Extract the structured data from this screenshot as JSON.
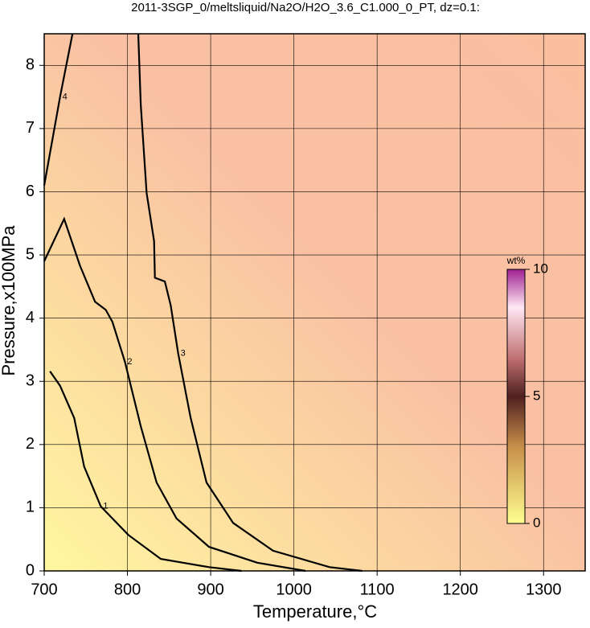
{
  "chart_data": {
    "type": "contour",
    "title": "2011-3SGP_0/meltsliquid/Na2O/H2O_3.6_C1.000_0_PT, dz=0.1:",
    "x_label": "Temperature,°C",
    "y_label": "Pressure,x100MPa",
    "xlim": [
      700,
      1350
    ],
    "ylim": [
      0,
      8.5
    ],
    "xticks": [
      700,
      800,
      900,
      1000,
      1100,
      1200,
      1300
    ],
    "yticks": [
      0,
      1,
      2,
      3,
      4,
      5,
      6,
      7,
      8
    ],
    "grid": true,
    "colorbar": {
      "label": "wt%",
      "lim": [
        0,
        10
      ],
      "ticks": [
        0,
        5,
        10
      ]
    },
    "contours": [
      {
        "level": 1,
        "x": [
          707,
          719,
          736,
          748,
          768,
          801,
          840,
          898,
          937
        ],
        "y": [
          3.16,
          2.93,
          2.42,
          1.65,
          1.02,
          0.57,
          0.19,
          0.06,
          0
        ]
      },
      {
        "level": 2,
        "x": [
          700,
          724,
          743,
          761,
          774,
          782,
          797,
          816,
          835,
          859,
          898,
          956,
          1014
        ],
        "y": [
          4.9,
          5.57,
          4.83,
          4.26,
          4.13,
          3.94,
          3.31,
          2.29,
          1.4,
          0.83,
          0.38,
          0.13,
          0
        ]
      },
      {
        "level": 3,
        "x": [
          813,
          816,
          823,
          832,
          833,
          845,
          852,
          861,
          876,
          895,
          927,
          975,
          1043,
          1082
        ],
        "y": [
          8.5,
          7.38,
          5.98,
          5.22,
          4.64,
          4.58,
          4.2,
          3.44,
          2.42,
          1.4,
          0.76,
          0.32,
          0.06,
          0
        ]
      },
      {
        "level": 4,
        "x": [
          700,
          719,
          734
        ],
        "y": [
          6.1,
          7.5,
          8.5
        ]
      }
    ]
  }
}
